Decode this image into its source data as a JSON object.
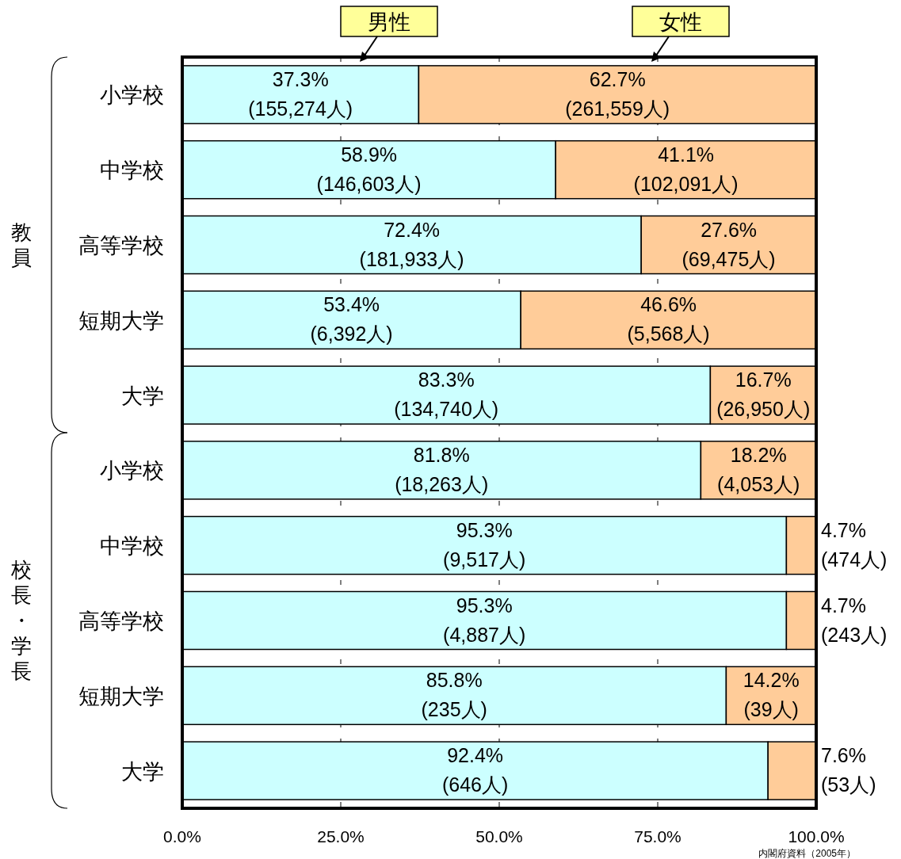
{
  "chart_data": {
    "type": "bar",
    "orientation": "horizontal",
    "stacked": true,
    "categories": [
      "小学校",
      "中学校",
      "高等学校",
      "短期大学",
      "大学",
      "小学校",
      "中学校",
      "高等学校",
      "短期大学",
      "大学"
    ],
    "series": [
      {
        "name": "男性",
        "color": "#ccffff",
        "values": [
          37.3,
          58.9,
          72.4,
          53.4,
          83.3,
          81.8,
          95.3,
          95.3,
          85.8,
          92.4
        ],
        "value_labels": [
          "37.3%\n(155,274人)",
          "58.9%\n(146,603人)",
          "72.4%\n(181,933人)",
          "53.4%\n(6,392人)",
          "83.3%\n(134,740人)",
          "81.8%\n(18,263人)",
          "95.3%\n(9,517人)",
          "95.3%\n(4,887人)",
          "85.8%\n(235人)",
          "92.4%\n(646人)"
        ]
      },
      {
        "name": "女性",
        "color": "#ffcc99",
        "values": [
          62.7,
          41.1,
          27.6,
          46.6,
          16.7,
          18.2,
          4.7,
          4.7,
          14.2,
          7.6
        ],
        "value_labels": [
          "62.7%\n(261,559人)",
          "41.1%\n(102,091人)",
          "27.6%\n(69,475人)",
          "46.6%\n(5,568人)",
          "16.7%\n(26,950人)",
          "18.2%\n(4,053人)",
          "4.7%\n(474人)",
          "4.7%\n(243人)",
          "14.2%\n(39人)",
          "7.6%\n(53人)"
        ]
      }
    ],
    "xlim": [
      0,
      100
    ],
    "xticks": [
      {
        "value": 0,
        "label": "0.0%"
      },
      {
        "value": 25,
        "label": "25.0%"
      },
      {
        "value": 50,
        "label": "50.0%"
      },
      {
        "value": 75,
        "label": "75.0%"
      },
      {
        "value": 100,
        "label": "100.0%"
      }
    ],
    "grid": "x",
    "legend": "top",
    "annotations": [
      "教員",
      "校長・学長",
      "内閣府資料（2005年）"
    ]
  }
}
